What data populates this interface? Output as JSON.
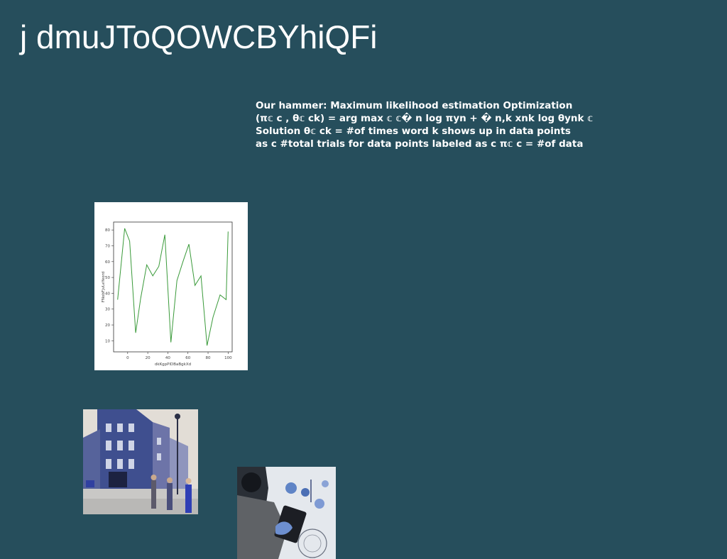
{
  "slide": {
    "title": "j dmuJToQOWCBYhiQFi",
    "body_lines": [
      "Our hammer: Maximum likelihood estimation Optimization",
      "(π𝕔 c , θ𝕔 ck) = arg max 𝕔 𝕔� n log πyn + � n,k xnk log θynk 𝕔",
      "Solution θ𝕔 ck = #of times word k shows up in data points",
      "as c #total trials for data points labeled as c π𝕔 c = #of data"
    ]
  },
  "chart_data": {
    "type": "line",
    "xlabel": "dkKgpPlDBaBgkXd",
    "ylabel": "FNobFjvLeYeord",
    "x": [
      -10,
      -3,
      2,
      8,
      13,
      19,
      25,
      31,
      37,
      43,
      49,
      55,
      61,
      67,
      73,
      79,
      85,
      92,
      98,
      100
    ],
    "y": [
      36,
      81,
      73,
      15,
      37,
      58,
      51,
      57,
      77,
      9,
      48,
      60,
      71,
      45,
      51,
      7,
      25,
      39,
      36,
      79
    ],
    "xticks": [
      0,
      20,
      40,
      60,
      80,
      100
    ],
    "yticks": [
      10,
      20,
      30,
      40,
      50,
      60,
      70,
      80
    ],
    "xlim": [
      -14,
      104
    ],
    "ylim": [
      3,
      85
    ],
    "line_color": "#3a9a3a",
    "grid": false
  },
  "colors": {
    "background": "#264e5c",
    "text": "#ffffff"
  }
}
